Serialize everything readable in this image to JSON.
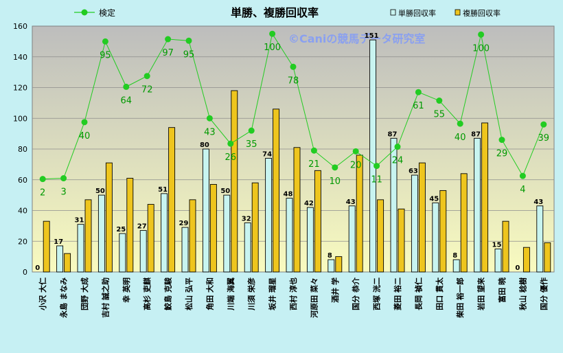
{
  "chart_data": {
    "type": "bar",
    "title": "単勝、複勝回収率",
    "watermark": "©Caniの競馬データ研究室",
    "ylim": [
      0,
      160
    ],
    "yticks": [
      0,
      20,
      40,
      60,
      80,
      100,
      120,
      140,
      160
    ],
    "grid": true,
    "legend_position": "top",
    "categories": [
      "小沢 大仁",
      "永島 まなみ",
      "団野 大成",
      "吉村 誠之助",
      "幸 英明",
      "高杉 吏麒",
      "鮫島 克駿",
      "松山 弘平",
      "角田 大和",
      "川端 海翼",
      "川須 栄彦",
      "坂井 瑠星",
      "西村 淳也",
      "河原田 菜々",
      "酒井 学",
      "国分 恭介",
      "西塚 洸二",
      "菱田 裕二",
      "長岡 禎仁",
      "田口 貫太",
      "柴田 裕一郎",
      "岩田 望来",
      "富田 暁",
      "秋山 稔樹",
      "国分 優作"
    ],
    "series": [
      {
        "name": "単勝回収率",
        "kind": "bar",
        "color": "#c8f4f0",
        "label_color": "#000000",
        "values": [
          0,
          17,
          31,
          50,
          25,
          27,
          51,
          29,
          80,
          50,
          32,
          74,
          48,
          42,
          8,
          43,
          151,
          87,
          63,
          45,
          8,
          87,
          15,
          0,
          43
        ]
      },
      {
        "name": "複勝回収率",
        "kind": "bar",
        "color": "#eec51e",
        "label_color": "#000000",
        "values": [
          33,
          12,
          47,
          71,
          61,
          44,
          94,
          47,
          57,
          118,
          58,
          106,
          81,
          66,
          10,
          76,
          47,
          41,
          71,
          53,
          64,
          97,
          33,
          16,
          19
        ]
      },
      {
        "name": "検定",
        "kind": "line",
        "color": "#22cc22",
        "label_color": "#009900",
        "values": [
          60.5,
          61,
          97.5,
          150,
          120.5,
          127.5,
          151.5,
          150.5,
          100,
          83.5,
          92,
          155,
          133.5,
          79,
          68,
          78.5,
          69,
          81.5,
          117,
          111.5,
          96.5,
          154.5,
          86,
          62.5,
          96
        ],
        "labels": [
          2,
          3,
          40,
          95,
          64,
          72,
          97,
          95,
          43,
          26,
          35,
          100,
          78,
          21,
          10,
          20,
          11,
          24,
          61,
          55,
          40,
          100,
          29,
          4,
          39
        ]
      }
    ],
    "colors": {
      "page_bg": "#c6f0f3",
      "plot_top": "#bdbdbd",
      "plot_bottom": "#f9fbbf",
      "line": "#22cc22",
      "label_green": "#009900",
      "watermark": "#8aa0f0"
    }
  }
}
